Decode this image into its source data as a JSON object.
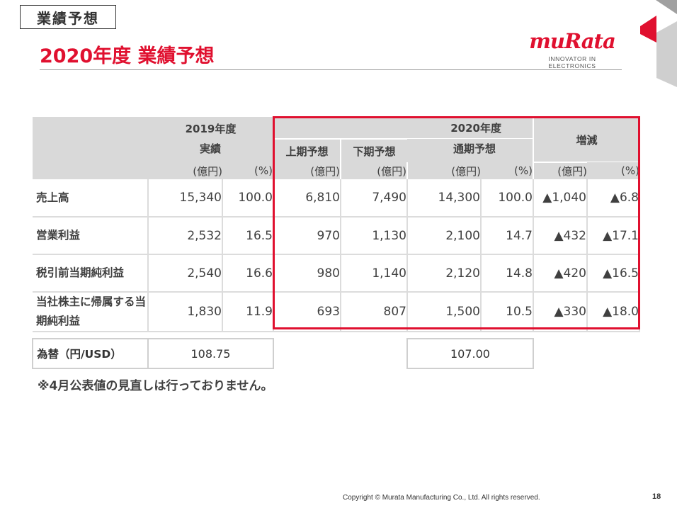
{
  "header": {
    "section_tag": "業績予想",
    "title": "2020年度 業績予想"
  },
  "logo": {
    "wordmark": "muRata",
    "tagline": "INNOVATOR IN ELECTRONICS",
    "brand_color": "#e0102f"
  },
  "table": {
    "fy2019": {
      "year": "2019年度",
      "label": "実績",
      "units": [
        "(億円)",
        "(%)"
      ]
    },
    "fy2020": {
      "year": "2020年度",
      "first_half": "上期予想",
      "second_half": "下期予想",
      "full_year": "通期予想",
      "units": [
        "(億円)",
        "(億円)",
        "(億円)",
        "(%)"
      ]
    },
    "change": {
      "label": "増減",
      "units": [
        "(億円)",
        "(%)"
      ]
    },
    "rows": [
      {
        "label": "売上高",
        "v": [
          "15,340",
          "100.0",
          "6,810",
          "7,490",
          "14,300",
          "100.0",
          "▲1,040",
          "▲6.8"
        ]
      },
      {
        "label": "営業利益",
        "v": [
          "2,532",
          "16.5",
          "970",
          "1,130",
          "2,100",
          "14.7",
          "▲432",
          "▲17.1"
        ]
      },
      {
        "label": "税引前当期純利益",
        "v": [
          "2,540",
          "16.6",
          "980",
          "1,140",
          "2,120",
          "14.8",
          "▲420",
          "▲16.5"
        ]
      },
      {
        "label": "当社株主に帰属する当期純利益",
        "v": [
          "1,830",
          "11.9",
          "693",
          "807",
          "1,500",
          "10.5",
          "▲330",
          "▲18.0"
        ]
      }
    ],
    "fx": {
      "label": "為替（円/USD）",
      "fy2019": "108.75",
      "fy2020": "107.00"
    }
  },
  "note": "※4月公表値の見直しは行っておりません。",
  "footer": {
    "copyright": "Copyright © Murata Manufacturing Co., Ltd. All rights reserved.",
    "page_number": "18"
  }
}
